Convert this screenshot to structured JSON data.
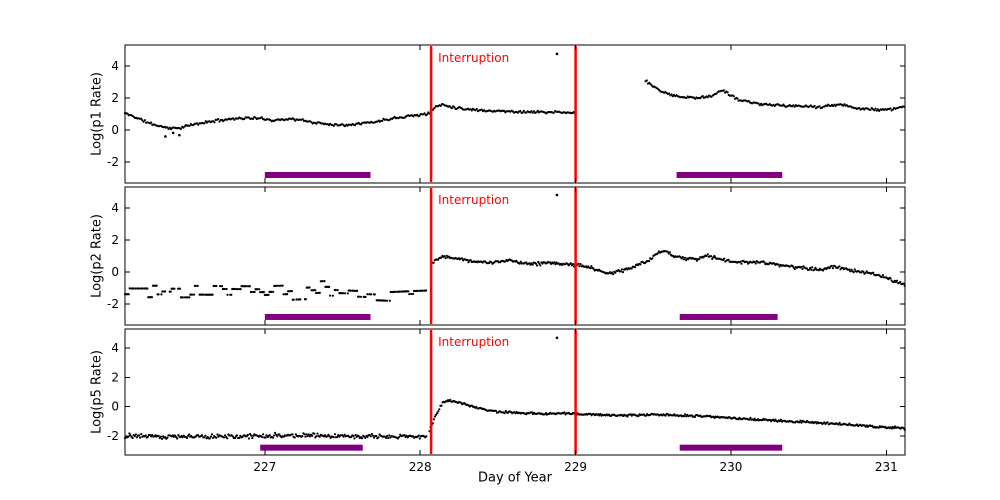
{
  "chart_data": {
    "type": "scatter",
    "xlabel": "Day of Year",
    "x_range": [
      226.1,
      231.12
    ],
    "x_ticks": [
      227,
      228,
      229,
      230,
      231
    ],
    "annotation": {
      "label": "Interruption",
      "color": "#ff0000"
    },
    "interruption_lines": [
      228.07,
      229.0
    ],
    "bar_color": "#800080",
    "point_color": "#000000",
    "panels": [
      {
        "ylabel": "Log(p1 Rate)",
        "y_range": [
          -3.3,
          5.3
        ],
        "y_ticks": [
          -2,
          0,
          2,
          4
        ],
        "bars": {
          "y": -2.8,
          "spans": [
            [
              227.0,
              227.68
            ],
            [
              229.65,
              230.33
            ]
          ]
        },
        "outliers": [
          [
            226.36,
            -0.4
          ],
          [
            226.41,
            -0.18
          ],
          [
            226.45,
            -0.32
          ],
          [
            228.88,
            4.75
          ]
        ],
        "parts": [
          {
            "seed": 11,
            "step": 0.008,
            "sigma": 0.06,
            "keyframes": [
              [
                226.1,
                1.05
              ],
              [
                226.18,
                0.75
              ],
              [
                226.25,
                0.45
              ],
              [
                226.32,
                0.25
              ],
              [
                226.4,
                0.1
              ],
              [
                226.46,
                0.15
              ],
              [
                226.52,
                0.3
              ],
              [
                226.6,
                0.45
              ],
              [
                226.7,
                0.6
              ],
              [
                226.8,
                0.72
              ],
              [
                226.9,
                0.75
              ],
              [
                227.0,
                0.7
              ],
              [
                227.05,
                0.6
              ],
              [
                227.15,
                0.7
              ],
              [
                227.25,
                0.6
              ],
              [
                227.32,
                0.45
              ],
              [
                227.4,
                0.38
              ],
              [
                227.5,
                0.3
              ],
              [
                227.6,
                0.42
              ],
              [
                227.7,
                0.48
              ],
              [
                227.8,
                0.7
              ],
              [
                227.9,
                0.85
              ],
              [
                228.0,
                0.95
              ],
              [
                228.05,
                1.0
              ],
              [
                228.1,
                1.45
              ],
              [
                228.14,
                1.6
              ],
              [
                228.2,
                1.45
              ],
              [
                228.3,
                1.3
              ],
              [
                228.45,
                1.2
              ],
              [
                228.6,
                1.15
              ],
              [
                228.75,
                1.12
              ],
              [
                228.9,
                1.1
              ],
              [
                229.0,
                1.05
              ]
            ]
          },
          {
            "seed": 12,
            "step": 0.008,
            "sigma": 0.06,
            "keyframes": [
              [
                229.45,
                3.1
              ],
              [
                229.5,
                2.7
              ],
              [
                229.55,
                2.45
              ],
              [
                229.62,
                2.2
              ],
              [
                229.7,
                2.05
              ],
              [
                229.8,
                2.0
              ],
              [
                229.88,
                2.15
              ],
              [
                229.94,
                2.5
              ],
              [
                229.98,
                2.3
              ],
              [
                230.05,
                1.9
              ],
              [
                230.12,
                1.75
              ],
              [
                230.2,
                1.6
              ],
              [
                230.3,
                1.55
              ],
              [
                230.42,
                1.5
              ],
              [
                230.55,
                1.42
              ],
              [
                230.65,
                1.55
              ],
              [
                230.72,
                1.6
              ],
              [
                230.8,
                1.35
              ],
              [
                230.9,
                1.3
              ],
              [
                231.0,
                1.25
              ],
              [
                231.12,
                1.45
              ]
            ]
          }
        ]
      },
      {
        "ylabel": "Log(p2 Rate)",
        "y_range": [
          -3.3,
          5.3
        ],
        "y_ticks": [
          -2,
          0,
          2,
          4
        ],
        "bars": {
          "y": -2.8,
          "spans": [
            [
              227.0,
              227.68
            ],
            [
              229.67,
              230.3
            ]
          ]
        },
        "outliers": [
          [
            228.88,
            4.8
          ]
        ],
        "parts": [
          {
            "seed": 21,
            "step": 0.006,
            "sigma": 0.33,
            "quant": 0.18,
            "hold": 5,
            "skip": 0.25,
            "keyframes": [
              [
                226.1,
                -1.2
              ],
              [
                227.0,
                -1.25
              ],
              [
                227.4,
                -1.1
              ],
              [
                227.8,
                -1.25
              ],
              [
                228.04,
                -1.15
              ]
            ]
          },
          {
            "seed": 22,
            "step": 0.007,
            "sigma": 0.08,
            "keyframes": [
              [
                228.08,
                0.6
              ],
              [
                228.12,
                0.9
              ],
              [
                228.17,
                1.0
              ],
              [
                228.25,
                0.85
              ],
              [
                228.32,
                0.7
              ],
              [
                228.42,
                0.6
              ],
              [
                228.5,
                0.62
              ],
              [
                228.58,
                0.72
              ],
              [
                228.65,
                0.6
              ],
              [
                228.75,
                0.52
              ],
              [
                228.85,
                0.55
              ],
              [
                228.95,
                0.5
              ],
              [
                229.0,
                0.45
              ],
              [
                229.08,
                0.35
              ],
              [
                229.15,
                0.05
              ],
              [
                229.22,
                -0.1
              ],
              [
                229.3,
                0.1
              ],
              [
                229.38,
                0.35
              ],
              [
                229.45,
                0.6
              ],
              [
                229.52,
                1.15
              ],
              [
                229.57,
                1.3
              ],
              [
                229.63,
                1.05
              ],
              [
                229.7,
                0.85
              ],
              [
                229.78,
                0.8
              ],
              [
                229.85,
                1.0
              ],
              [
                229.9,
                0.9
              ],
              [
                229.97,
                0.7
              ],
              [
                230.05,
                0.6
              ],
              [
                230.15,
                0.62
              ],
              [
                230.25,
                0.55
              ],
              [
                230.33,
                0.38
              ],
              [
                230.42,
                0.3
              ],
              [
                230.5,
                0.22
              ],
              [
                230.58,
                0.18
              ],
              [
                230.66,
                0.35
              ],
              [
                230.74,
                0.15
              ],
              [
                230.82,
                0.0
              ],
              [
                230.9,
                -0.1
              ],
              [
                230.98,
                -0.3
              ],
              [
                231.05,
                -0.55
              ],
              [
                231.12,
                -0.8
              ]
            ]
          }
        ]
      },
      {
        "ylabel": "Log(p5 Rate)",
        "y_range": [
          -3.3,
          5.3
        ],
        "y_ticks": [
          -2,
          0,
          2,
          4
        ],
        "bars": {
          "y": -2.8,
          "spans": [
            [
              226.97,
              227.63
            ],
            [
              229.67,
              230.33
            ]
          ]
        },
        "outliers": [
          [
            228.88,
            4.7
          ]
        ],
        "parts": [
          {
            "seed": 51,
            "step": 0.007,
            "sigma": 0.12,
            "keyframes": [
              [
                226.1,
                -2.0
              ],
              [
                226.6,
                -2.05
              ],
              [
                227.1,
                -1.95
              ],
              [
                227.6,
                -2.05
              ],
              [
                228.04,
                -2.0
              ]
            ]
          },
          {
            "seed": 52,
            "step": 0.007,
            "sigma": 0.06,
            "keyframes": [
              [
                228.06,
                -1.6
              ],
              [
                228.1,
                -0.6
              ],
              [
                228.14,
                0.2
              ],
              [
                228.18,
                0.45
              ],
              [
                228.25,
                0.3
              ],
              [
                228.35,
                -0.05
              ],
              [
                228.5,
                -0.35
              ],
              [
                228.7,
                -0.45
              ],
              [
                229.0,
                -0.5
              ],
              [
                229.3,
                -0.6
              ],
              [
                229.5,
                -0.55
              ],
              [
                229.7,
                -0.6
              ],
              [
                229.9,
                -0.7
              ],
              [
                230.2,
                -0.9
              ],
              [
                230.5,
                -1.05
              ],
              [
                230.8,
                -1.25
              ],
              [
                231.12,
                -1.5
              ]
            ]
          }
        ]
      }
    ]
  }
}
